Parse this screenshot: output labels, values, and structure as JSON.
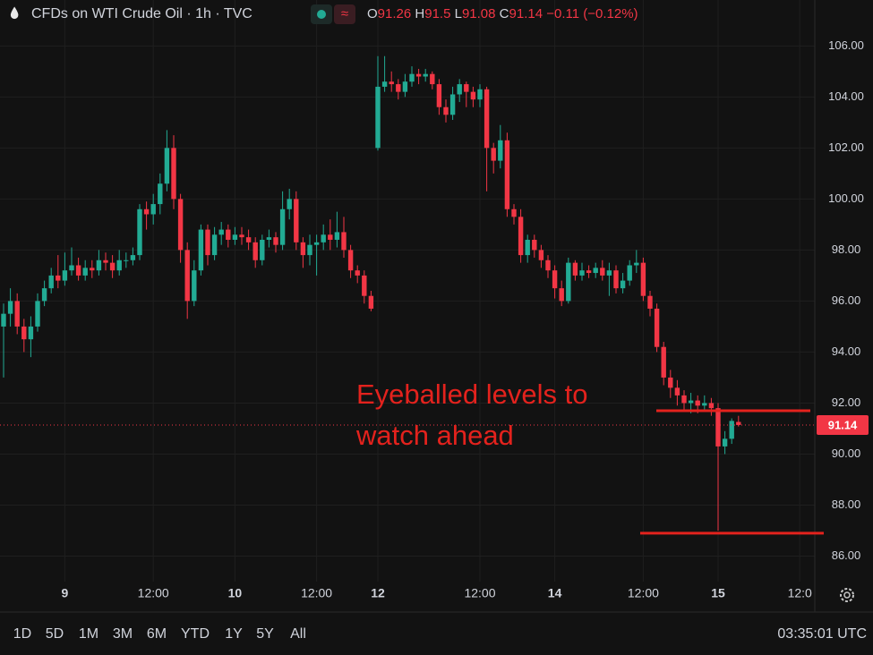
{
  "header": {
    "symbol": "CFDs on WTI Crude Oil · 1h · TVC",
    "o_label": "O",
    "h_label": "H",
    "l_label": "L",
    "c_label": "C",
    "change": "−0.11 (−0.12%)"
  },
  "toolbar": {
    "ranges": [
      "1D",
      "5D",
      "1M",
      "3M",
      "6M",
      "YTD",
      "1Y",
      "5Y",
      "All"
    ],
    "time": "03:35:01 UTC"
  },
  "chart_data": {
    "type": "candlestick",
    "up_color": "#22ab94",
    "down_color": "#f23645",
    "categories": [
      null,
      null,
      null,
      null,
      null,
      null,
      null,
      null,
      null,
      "9",
      null,
      null,
      null,
      null,
      null,
      null,
      null,
      null,
      null,
      null,
      null,
      null,
      "12:00",
      null,
      null,
      null,
      null,
      null,
      null,
      null,
      null,
      null,
      null,
      null,
      "10",
      null,
      null,
      null,
      null,
      null,
      null,
      null,
      null,
      null,
      null,
      null,
      "12:00",
      null,
      null,
      null,
      null,
      null,
      null,
      null,
      null,
      "12",
      null,
      null,
      null,
      null,
      null,
      null,
      null,
      null,
      null,
      null,
      null,
      null,
      null,
      null,
      "12:00",
      null,
      null,
      null,
      null,
      null,
      null,
      null,
      null,
      null,
      null,
      "14",
      null,
      null,
      null,
      null,
      null,
      null,
      null,
      null,
      null,
      null,
      null,
      null,
      "12:00",
      null,
      null,
      null,
      null,
      null,
      null,
      null,
      null,
      null,
      null,
      "15",
      null,
      null,
      null,
      null,
      null,
      null,
      null,
      null,
      null,
      null,
      null,
      "12:0"
    ],
    "open": [
      95.0,
      95.5,
      96.0,
      95.0,
      94.5,
      95.0,
      96.0,
      96.5,
      97.0,
      96.8,
      97.2,
      97.4,
      97.0,
      97.3,
      97.2,
      97.6,
      97.5,
      97.2,
      97.6,
      97.6,
      97.8,
      99.6,
      99.4,
      99.8,
      100.6,
      102.0,
      100.0,
      98.0,
      96.0,
      97.2,
      98.8,
      97.8,
      98.6,
      98.8,
      98.4,
      98.6,
      98.5,
      98.3,
      97.6,
      98.4,
      98.5,
      98.2,
      99.6,
      100.0,
      98.3,
      97.8,
      98.2,
      98.3,
      98.6,
      98.4,
      98.7,
      98.0,
      97.2,
      97.0,
      96.2,
      102.0,
      104.4,
      104.6,
      104.5,
      104.2,
      104.6,
      104.9,
      104.8,
      104.9,
      104.5,
      103.6,
      103.3,
      104.1,
      104.5,
      104.2,
      103.9,
      104.3,
      102.0,
      101.5,
      102.3,
      99.6,
      99.3,
      97.8,
      98.4,
      98.0,
      97.6,
      97.2,
      96.5,
      96.0,
      97.5,
      97.0,
      97.2,
      97.1,
      97.3,
      97.0,
      97.2,
      96.5,
      96.8,
      97.4,
      97.5,
      96.2,
      95.7,
      94.2,
      93.0,
      92.6,
      92.3,
      92.0,
      92.1,
      91.9,
      92.0,
      91.8,
      90.3,
      90.6,
      91.26,
      null,
      null,
      null,
      null,
      null,
      null,
      null,
      null,
      null
    ],
    "high": [
      95.9,
      96.5,
      96.3,
      95.3,
      95.4,
      96.3,
      96.8,
      97.3,
      97.8,
      97.9,
      98.1,
      97.7,
      97.6,
      97.6,
      98.0,
      97.9,
      97.8,
      98.0,
      97.9,
      98.1,
      99.8,
      99.9,
      100.2,
      101.0,
      102.7,
      102.5,
      100.2,
      98.3,
      97.6,
      99.0,
      99.0,
      98.9,
      99.1,
      99.0,
      98.9,
      98.9,
      98.8,
      98.5,
      98.6,
      98.8,
      98.7,
      100.3,
      100.4,
      100.3,
      98.5,
      98.6,
      98.6,
      99.0,
      99.2,
      99.5,
      99.3,
      98.2,
      97.4,
      97.2,
      96.4,
      105.6,
      105.6,
      105.0,
      104.7,
      104.9,
      105.2,
      105.1,
      105.1,
      105.0,
      104.7,
      103.9,
      104.4,
      104.7,
      104.6,
      104.4,
      104.5,
      104.4,
      102.2,
      102.9,
      102.6,
      99.8,
      99.6,
      98.6,
      98.6,
      98.2,
      97.8,
      97.4,
      96.8,
      97.7,
      97.6,
      97.5,
      97.4,
      97.5,
      97.6,
      97.5,
      97.4,
      97.1,
      97.6,
      98.0,
      97.7,
      96.4,
      95.9,
      94.4,
      93.3,
      92.9,
      92.5,
      92.4,
      92.3,
      92.3,
      92.2,
      92.0,
      90.9,
      91.4,
      91.5,
      null,
      null,
      null,
      null,
      null,
      null,
      null,
      null,
      null
    ],
    "low": [
      93.0,
      95.0,
      94.7,
      94.0,
      93.8,
      94.8,
      95.8,
      96.3,
      96.5,
      96.6,
      97.0,
      96.8,
      96.8,
      96.9,
      97.0,
      97.2,
      96.9,
      97.0,
      97.3,
      97.4,
      97.6,
      98.8,
      99.0,
      99.4,
      100.3,
      99.6,
      97.5,
      95.3,
      95.8,
      97.0,
      97.4,
      97.6,
      98.2,
      98.1,
      98.2,
      98.2,
      98.0,
      97.3,
      97.4,
      98.1,
      97.9,
      98.0,
      99.2,
      98.0,
      97.3,
      97.4,
      97.0,
      98.0,
      98.0,
      98.1,
      97.7,
      96.9,
      96.7,
      95.9,
      95.6,
      101.9,
      104.2,
      104.2,
      103.9,
      104.0,
      104.4,
      104.5,
      104.6,
      104.3,
      103.3,
      103.0,
      103.1,
      103.8,
      103.6,
      103.6,
      103.6,
      100.3,
      101.0,
      101.2,
      99.3,
      99.0,
      97.5,
      97.5,
      97.7,
      97.3,
      96.9,
      96.1,
      95.8,
      95.9,
      96.8,
      96.8,
      96.9,
      96.9,
      96.8,
      96.2,
      96.3,
      96.3,
      96.6,
      97.1,
      96.0,
      95.4,
      94.0,
      92.7,
      92.2,
      91.9,
      91.7,
      91.6,
      91.6,
      91.7,
      91.5,
      87.0,
      90.0,
      90.4,
      91.08,
      null,
      null,
      null,
      null,
      null,
      null,
      null,
      null,
      null
    ],
    "close": [
      95.5,
      96.0,
      95.0,
      94.5,
      95.0,
      96.0,
      96.5,
      97.0,
      96.8,
      97.2,
      97.4,
      97.0,
      97.3,
      97.2,
      97.6,
      97.5,
      97.2,
      97.6,
      97.6,
      97.8,
      99.6,
      99.4,
      99.8,
      100.6,
      102.0,
      100.0,
      98.0,
      96.0,
      97.2,
      98.8,
      97.8,
      98.6,
      98.8,
      98.4,
      98.6,
      98.5,
      98.3,
      97.6,
      98.4,
      98.5,
      98.2,
      99.6,
      100.0,
      98.3,
      97.8,
      98.2,
      98.3,
      98.6,
      98.4,
      98.7,
      98.0,
      97.2,
      97.0,
      96.2,
      95.7,
      104.4,
      104.6,
      104.5,
      104.2,
      104.6,
      104.9,
      104.8,
      104.9,
      104.5,
      103.6,
      103.3,
      104.1,
      104.5,
      104.2,
      103.9,
      104.3,
      102.0,
      101.5,
      102.3,
      99.6,
      99.3,
      97.8,
      98.4,
      98.0,
      97.6,
      97.2,
      96.5,
      96.0,
      97.5,
      97.0,
      97.2,
      97.1,
      97.3,
      97.0,
      97.2,
      96.5,
      96.8,
      97.4,
      97.5,
      96.2,
      95.7,
      94.2,
      93.0,
      92.6,
      92.3,
      92.0,
      92.1,
      91.9,
      92.0,
      91.8,
      90.3,
      90.6,
      91.3,
      91.14,
      null,
      null,
      null,
      null,
      null,
      null,
      null,
      null,
      null
    ],
    "ylim": [
      85,
      107.8
    ],
    "yticks": [
      {
        "value": 86,
        "label": "86.00"
      },
      {
        "value": 88,
        "label": "88.00"
      },
      {
        "value": 90,
        "label": "90.00"
      },
      {
        "value": 92,
        "label": "92.00"
      },
      {
        "value": 94,
        "label": "94.00"
      },
      {
        "value": 96,
        "label": "96.00"
      },
      {
        "value": 98,
        "label": "98.00"
      },
      {
        "value": 100,
        "label": "100.00"
      },
      {
        "value": 102,
        "label": "102.00"
      },
      {
        "value": 104,
        "label": "104.00"
      },
      {
        "value": 106,
        "label": "106.00"
      }
    ],
    "grid": true,
    "annotation": [
      "Eyeballed levels to",
      "watch ahead"
    ],
    "annotation_color": "#e3221d",
    "levels": [
      91.7,
      86.9
    ]
  }
}
